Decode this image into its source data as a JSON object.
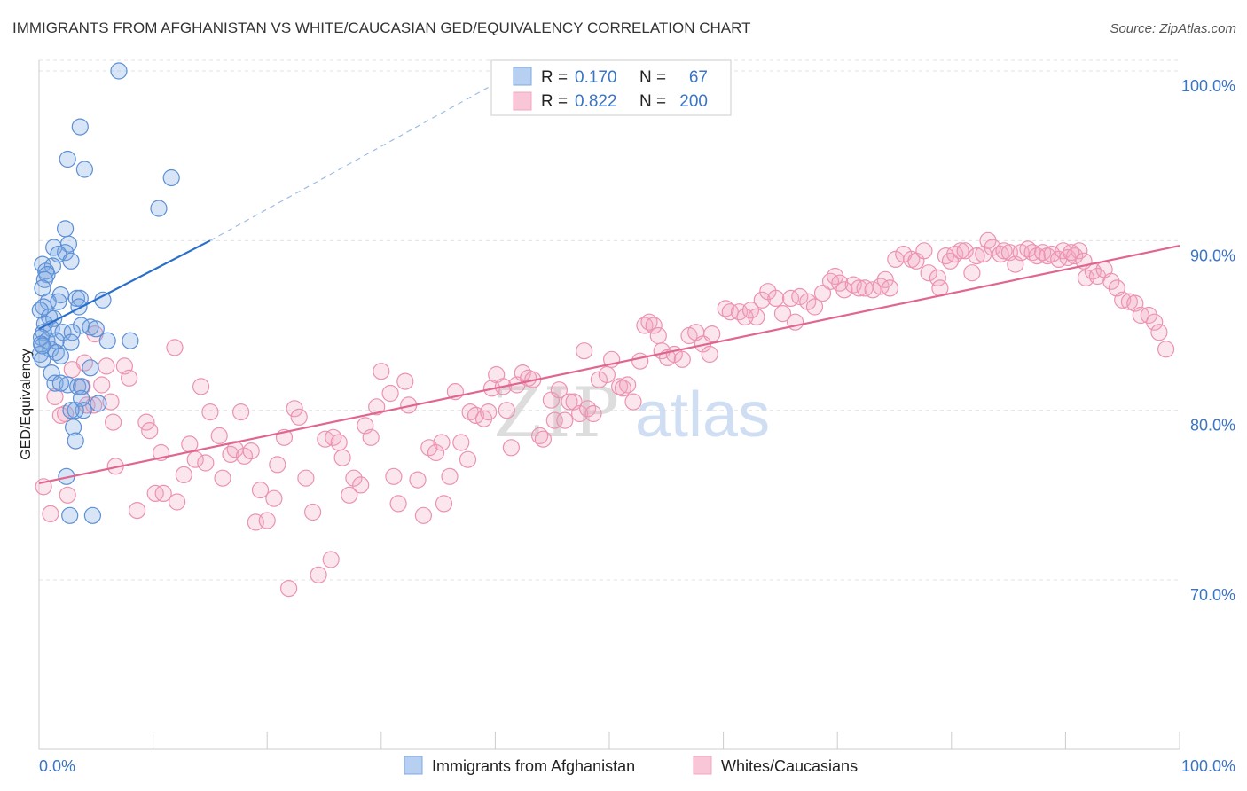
{
  "header": {
    "title": "IMMIGRANTS FROM AFGHANISTAN VS WHITE/CAUCASIAN GED/EQUIVALENCY CORRELATION CHART",
    "source": "Source: ZipAtlas.com"
  },
  "watermark": {
    "zip": "ZIP",
    "atlas": "atlas"
  },
  "chart_data": {
    "type": "scatter",
    "ylabel": "GED/Equivalency",
    "xlim": [
      0,
      100
    ],
    "ylim": [
      60,
      102
    ],
    "y_ticks": [
      {
        "value": 70,
        "label": "70.0%"
      },
      {
        "value": 80,
        "label": "80.0%"
      },
      {
        "value": 90,
        "label": "90.0%"
      },
      {
        "value": 100,
        "label": "100.0%"
      }
    ],
    "x_tick_labels": {
      "left": "0.0%",
      "right": "100.0%"
    },
    "grid": true,
    "legend_position": "top-center",
    "stats": [
      {
        "r_label": "R =",
        "r_value": "0.170",
        "n_label": "N =",
        "n_value": "67"
      },
      {
        "r_label": "R =",
        "r_value": "0.822",
        "n_label": "N =",
        "n_value": "200"
      }
    ],
    "series": [
      {
        "name": "Immigrants from Afghanistan",
        "color": "#7fa8e0",
        "line_color": "#2a6fcc",
        "trend": {
          "solid": [
            [
              0,
              84.8
            ],
            [
              15,
              90
            ]
          ],
          "dashed": [
            [
              15,
              90
            ],
            [
              42,
              100
            ]
          ]
        },
        "points": [
          [
            7,
            100
          ],
          [
            3.6,
            96.7
          ],
          [
            2.5,
            94.8
          ],
          [
            4,
            94.2
          ],
          [
            11.6,
            93.7
          ],
          [
            10.5,
            91.9
          ],
          [
            2.3,
            90.7
          ],
          [
            2.6,
            89.8
          ],
          [
            1.3,
            89.6
          ],
          [
            2.3,
            89.3
          ],
          [
            1.7,
            89.2
          ],
          [
            2.8,
            88.8
          ],
          [
            0.3,
            88.6
          ],
          [
            1.2,
            88.5
          ],
          [
            0.6,
            88.2
          ],
          [
            0.7,
            88
          ],
          [
            0.5,
            87.7
          ],
          [
            0.3,
            87.2
          ],
          [
            1.9,
            86.8
          ],
          [
            3.3,
            86.6
          ],
          [
            3.6,
            86.6
          ],
          [
            5.6,
            86.5
          ],
          [
            0.8,
            86.4
          ],
          [
            1.7,
            86.4
          ],
          [
            0.4,
            86.1
          ],
          [
            3.5,
            86.1
          ],
          [
            0.1,
            85.9
          ],
          [
            0.9,
            85.5
          ],
          [
            1.3,
            85.4
          ],
          [
            0.5,
            85.1
          ],
          [
            3.7,
            85
          ],
          [
            4.5,
            84.9
          ],
          [
            5,
            84.8
          ],
          [
            1.1,
            84.8
          ],
          [
            0.4,
            84.6
          ],
          [
            2.1,
            84.6
          ],
          [
            2.9,
            84.6
          ],
          [
            0.2,
            84.3
          ],
          [
            0.7,
            84.1
          ],
          [
            1.5,
            84.1
          ],
          [
            2.8,
            84
          ],
          [
            6,
            84.1
          ],
          [
            8,
            84.1
          ],
          [
            0.2,
            83.9
          ],
          [
            1,
            83.6
          ],
          [
            1.5,
            83.4
          ],
          [
            1.9,
            83.2
          ],
          [
            0.1,
            83.3
          ],
          [
            0.3,
            83
          ],
          [
            4.5,
            82.5
          ],
          [
            1.1,
            82.2
          ],
          [
            1.4,
            81.6
          ],
          [
            2.5,
            81.5
          ],
          [
            1.9,
            81.6
          ],
          [
            3.4,
            81.4
          ],
          [
            3.7,
            81.4
          ],
          [
            3.7,
            80.7
          ],
          [
            5.2,
            80.4
          ],
          [
            3.9,
            80
          ],
          [
            3.2,
            80
          ],
          [
            2.8,
            80
          ],
          [
            3,
            79
          ],
          [
            3.2,
            78.2
          ],
          [
            2.4,
            76.1
          ],
          [
            2.7,
            73.8
          ],
          [
            4.7,
            73.8
          ],
          [
            0.3,
            83.8
          ]
        ]
      },
      {
        "name": "Whites/Caucasians",
        "color": "#f2a7c0",
        "line_color": "#e06690",
        "trend": {
          "solid": [
            [
              0,
              75.7
            ],
            [
              100,
              89.7
            ]
          ]
        },
        "points": [
          [
            1,
            73.9
          ],
          [
            0.4,
            75.5
          ],
          [
            2.5,
            75
          ],
          [
            1.4,
            80.8
          ],
          [
            1.9,
            79.7
          ],
          [
            2.3,
            79.8
          ],
          [
            2.9,
            82.4
          ],
          [
            3.8,
            81.4
          ],
          [
            4,
            82.8
          ],
          [
            4.2,
            80.3
          ],
          [
            4.8,
            80.3
          ],
          [
            4.9,
            84.5
          ],
          [
            5.5,
            81.5
          ],
          [
            5.9,
            82.6
          ],
          [
            6.3,
            80.5
          ],
          [
            6.5,
            79.3
          ],
          [
            6.7,
            76.7
          ],
          [
            7.5,
            82.6
          ],
          [
            7.9,
            81.9
          ],
          [
            8.6,
            74.1
          ],
          [
            9.4,
            79.3
          ],
          [
            9.7,
            78.8
          ],
          [
            10.2,
            75.1
          ],
          [
            10.7,
            77.5
          ],
          [
            10.9,
            75.1
          ],
          [
            11.9,
            83.7
          ],
          [
            12.1,
            74.6
          ],
          [
            12.7,
            76.2
          ],
          [
            13.2,
            78
          ],
          [
            13.7,
            77.1
          ],
          [
            14.2,
            81.4
          ],
          [
            14.6,
            76.9
          ],
          [
            15,
            79.9
          ],
          [
            15.8,
            78.5
          ],
          [
            16.1,
            76
          ],
          [
            16.8,
            77.4
          ],
          [
            17.2,
            77.7
          ],
          [
            17.7,
            79.9
          ],
          [
            18,
            77.3
          ],
          [
            18.6,
            77.6
          ],
          [
            19,
            73.4
          ],
          [
            19.4,
            75.3
          ],
          [
            20,
            73.5
          ],
          [
            20.6,
            74.8
          ],
          [
            20.9,
            76.8
          ],
          [
            21.5,
            78.4
          ],
          [
            21.9,
            69.5
          ],
          [
            22.4,
            80.1
          ],
          [
            22.8,
            79.6
          ],
          [
            23.4,
            76
          ],
          [
            24,
            74
          ],
          [
            24.5,
            70.3
          ],
          [
            25.1,
            78.3
          ],
          [
            25.6,
            71.2
          ],
          [
            25.8,
            78.4
          ],
          [
            26.3,
            78.1
          ],
          [
            26.6,
            77.2
          ],
          [
            27.2,
            75
          ],
          [
            27.6,
            76
          ],
          [
            28.2,
            75.6
          ],
          [
            28.6,
            79.1
          ],
          [
            29.1,
            78.4
          ],
          [
            29.6,
            80.2
          ],
          [
            30,
            82.3
          ],
          [
            30.8,
            81
          ],
          [
            31.1,
            76.1
          ],
          [
            31.5,
            74.5
          ],
          [
            32.1,
            81.7
          ],
          [
            32.4,
            80.3
          ],
          [
            33.2,
            75.9
          ],
          [
            33.7,
            73.8
          ],
          [
            34.2,
            77.8
          ],
          [
            34.8,
            77.5
          ],
          [
            35.3,
            78.1
          ],
          [
            35.5,
            74.5
          ],
          [
            36,
            76.1
          ],
          [
            36.5,
            81.1
          ],
          [
            37,
            78.1
          ],
          [
            37.6,
            77.1
          ],
          [
            37.8,
            79.9
          ],
          [
            38.3,
            79.7
          ],
          [
            39,
            79.5
          ],
          [
            39.4,
            79.9
          ],
          [
            39.7,
            81.3
          ],
          [
            40.1,
            82.1
          ],
          [
            40.7,
            81.4
          ],
          [
            41,
            80
          ],
          [
            41.4,
            77.8
          ],
          [
            41.9,
            81.5
          ],
          [
            42.4,
            82.2
          ],
          [
            42.9,
            81.9
          ],
          [
            43.3,
            81.8
          ],
          [
            43.9,
            78.5
          ],
          [
            44.2,
            78.3
          ],
          [
            44.9,
            80.6
          ],
          [
            45.2,
            79.4
          ],
          [
            45.6,
            81.2
          ],
          [
            46.1,
            79.4
          ],
          [
            46.5,
            80.5
          ],
          [
            46.9,
            80.5
          ],
          [
            47.4,
            79.8
          ],
          [
            47.8,
            83.5
          ],
          [
            48.1,
            80.1
          ],
          [
            48.6,
            79.8
          ],
          [
            49.1,
            81.8
          ],
          [
            49.8,
            82.1
          ],
          [
            50.2,
            83
          ],
          [
            50.9,
            81.4
          ],
          [
            51.2,
            81.3
          ],
          [
            51.6,
            81.5
          ],
          [
            52.1,
            80.5
          ],
          [
            52.7,
            82.9
          ],
          [
            53.1,
            85
          ],
          [
            53.5,
            85.2
          ],
          [
            53.9,
            85
          ],
          [
            54.3,
            84.4
          ],
          [
            54.6,
            83.5
          ],
          [
            55.1,
            83.1
          ],
          [
            55.7,
            83.3
          ],
          [
            56.4,
            83
          ],
          [
            57,
            84.4
          ],
          [
            57.6,
            84.6
          ],
          [
            58.2,
            83.9
          ],
          [
            58.8,
            83.3
          ],
          [
            59,
            84.5
          ],
          [
            60.2,
            86
          ],
          [
            60.6,
            85.8
          ],
          [
            61.4,
            85.8
          ],
          [
            61.9,
            85.5
          ],
          [
            62.4,
            85.9
          ],
          [
            62.9,
            85.5
          ],
          [
            63.4,
            86.5
          ],
          [
            63.9,
            87
          ],
          [
            64.6,
            86.6
          ],
          [
            65.2,
            85.7
          ],
          [
            65.9,
            86.6
          ],
          [
            66.3,
            85.2
          ],
          [
            66.7,
            86.7
          ],
          [
            67.4,
            86.4
          ],
          [
            68,
            86.1
          ],
          [
            68.7,
            86.9
          ],
          [
            69.4,
            87.6
          ],
          [
            69.8,
            87.9
          ],
          [
            70.2,
            87.5
          ],
          [
            70.6,
            87.1
          ],
          [
            71.4,
            87.4
          ],
          [
            71.9,
            87.2
          ],
          [
            72.4,
            87.2
          ],
          [
            73.1,
            87.1
          ],
          [
            73.8,
            87.3
          ],
          [
            74.2,
            87.7
          ],
          [
            74.6,
            87.2
          ],
          [
            75.1,
            88.9
          ],
          [
            75.8,
            89.2
          ],
          [
            76.5,
            88.9
          ],
          [
            76.9,
            88.8
          ],
          [
            77.6,
            89.4
          ],
          [
            78,
            88.1
          ],
          [
            78.8,
            87.8
          ],
          [
            79,
            87.2
          ],
          [
            79.5,
            89.1
          ],
          [
            79.9,
            88.8
          ],
          [
            80.3,
            89.2
          ],
          [
            80.8,
            89.4
          ],
          [
            81.2,
            89.4
          ],
          [
            81.8,
            88.1
          ],
          [
            82.2,
            89.1
          ],
          [
            82.8,
            89.2
          ],
          [
            83.2,
            90
          ],
          [
            83.6,
            89.6
          ],
          [
            84.3,
            89.2
          ],
          [
            84.6,
            89.4
          ],
          [
            85.1,
            89.3
          ],
          [
            85.6,
            88.6
          ],
          [
            86.1,
            89.3
          ],
          [
            86.7,
            89.5
          ],
          [
            87.1,
            89.3
          ],
          [
            87.5,
            89.1
          ],
          [
            88,
            89.3
          ],
          [
            88.4,
            89.1
          ],
          [
            88.8,
            89.2
          ],
          [
            89.4,
            88.9
          ],
          [
            89.8,
            89.4
          ],
          [
            90.2,
            89
          ],
          [
            90.8,
            89.1
          ],
          [
            91.2,
            89.4
          ],
          [
            91.6,
            88.8
          ],
          [
            91.8,
            87.8
          ],
          [
            92.4,
            88.2
          ],
          [
            92.8,
            87.9
          ],
          [
            93.4,
            88.3
          ],
          [
            94,
            87.6
          ],
          [
            94.5,
            87.2
          ],
          [
            95,
            86.5
          ],
          [
            95.6,
            86.4
          ],
          [
            96.1,
            86.3
          ],
          [
            96.6,
            85.6
          ],
          [
            97.3,
            85.6
          ],
          [
            97.8,
            85.2
          ],
          [
            98.2,
            84.6
          ],
          [
            98.8,
            83.6
          ],
          [
            90.5,
            89.3
          ]
        ]
      }
    ]
  }
}
